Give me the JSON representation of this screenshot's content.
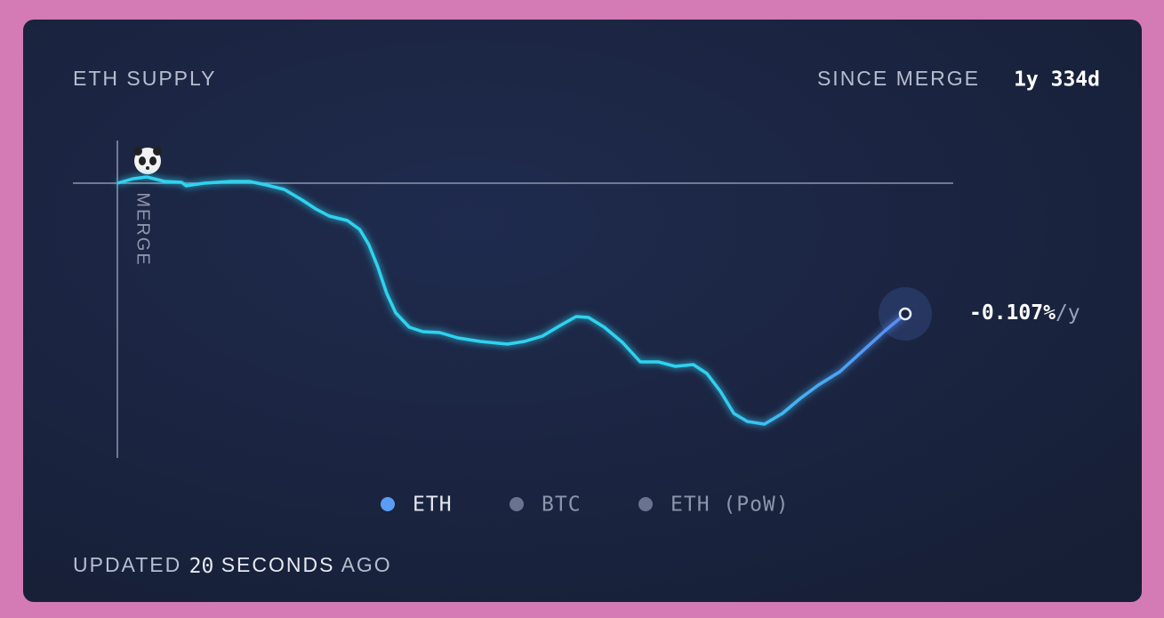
{
  "header": {
    "title": "ETH SUPPLY",
    "since_label": "SINCE MERGE",
    "since_value": "1y 334d"
  },
  "chart_data": {
    "type": "line",
    "annotation": "MERGE",
    "end_label": "-0.107%",
    "end_unit": "/y",
    "x": [
      0,
      14,
      26,
      42,
      57,
      61,
      77,
      101,
      117,
      132,
      148,
      164,
      176,
      188,
      204,
      215,
      223,
      231,
      239,
      247,
      259,
      271,
      286,
      302,
      322,
      346,
      361,
      377,
      393,
      407,
      418,
      432,
      448,
      464,
      480,
      495,
      511,
      523,
      535,
      547,
      559,
      574,
      590,
      606,
      622,
      641,
      661,
      681,
      699
    ],
    "series": [
      {
        "name": "ETH",
        "color": "#2fd3f0",
        "values": [
          0,
          5,
          7,
          2,
          1,
          -3,
          0,
          2,
          2,
          -2,
          -7,
          -19,
          -29,
          -37,
          -42,
          -52,
          -69,
          -94,
          -124,
          -146,
          -162,
          -167,
          -168,
          -174,
          -178,
          -181,
          -178,
          -172,
          -160,
          -150,
          -151,
          -162,
          -179,
          -201,
          -201,
          -206,
          -204,
          -214,
          -234,
          -259,
          -268,
          -271,
          -259,
          -242,
          -227,
          -212,
          -189,
          -166,
          -147
        ]
      }
    ],
    "xlim": [
      0,
      699
    ],
    "ylim": [
      -290,
      50
    ]
  },
  "legend": [
    {
      "name": "ETH",
      "color": "#5b9cf6"
    },
    {
      "name": "BTC",
      "color": "#6b7390"
    },
    {
      "name": "ETH (PoW)",
      "color": "#6b7390"
    }
  ],
  "footer": {
    "prefix": "UPDATED",
    "count": "20",
    "unit": "SECONDS",
    "suffix": "AGO"
  }
}
